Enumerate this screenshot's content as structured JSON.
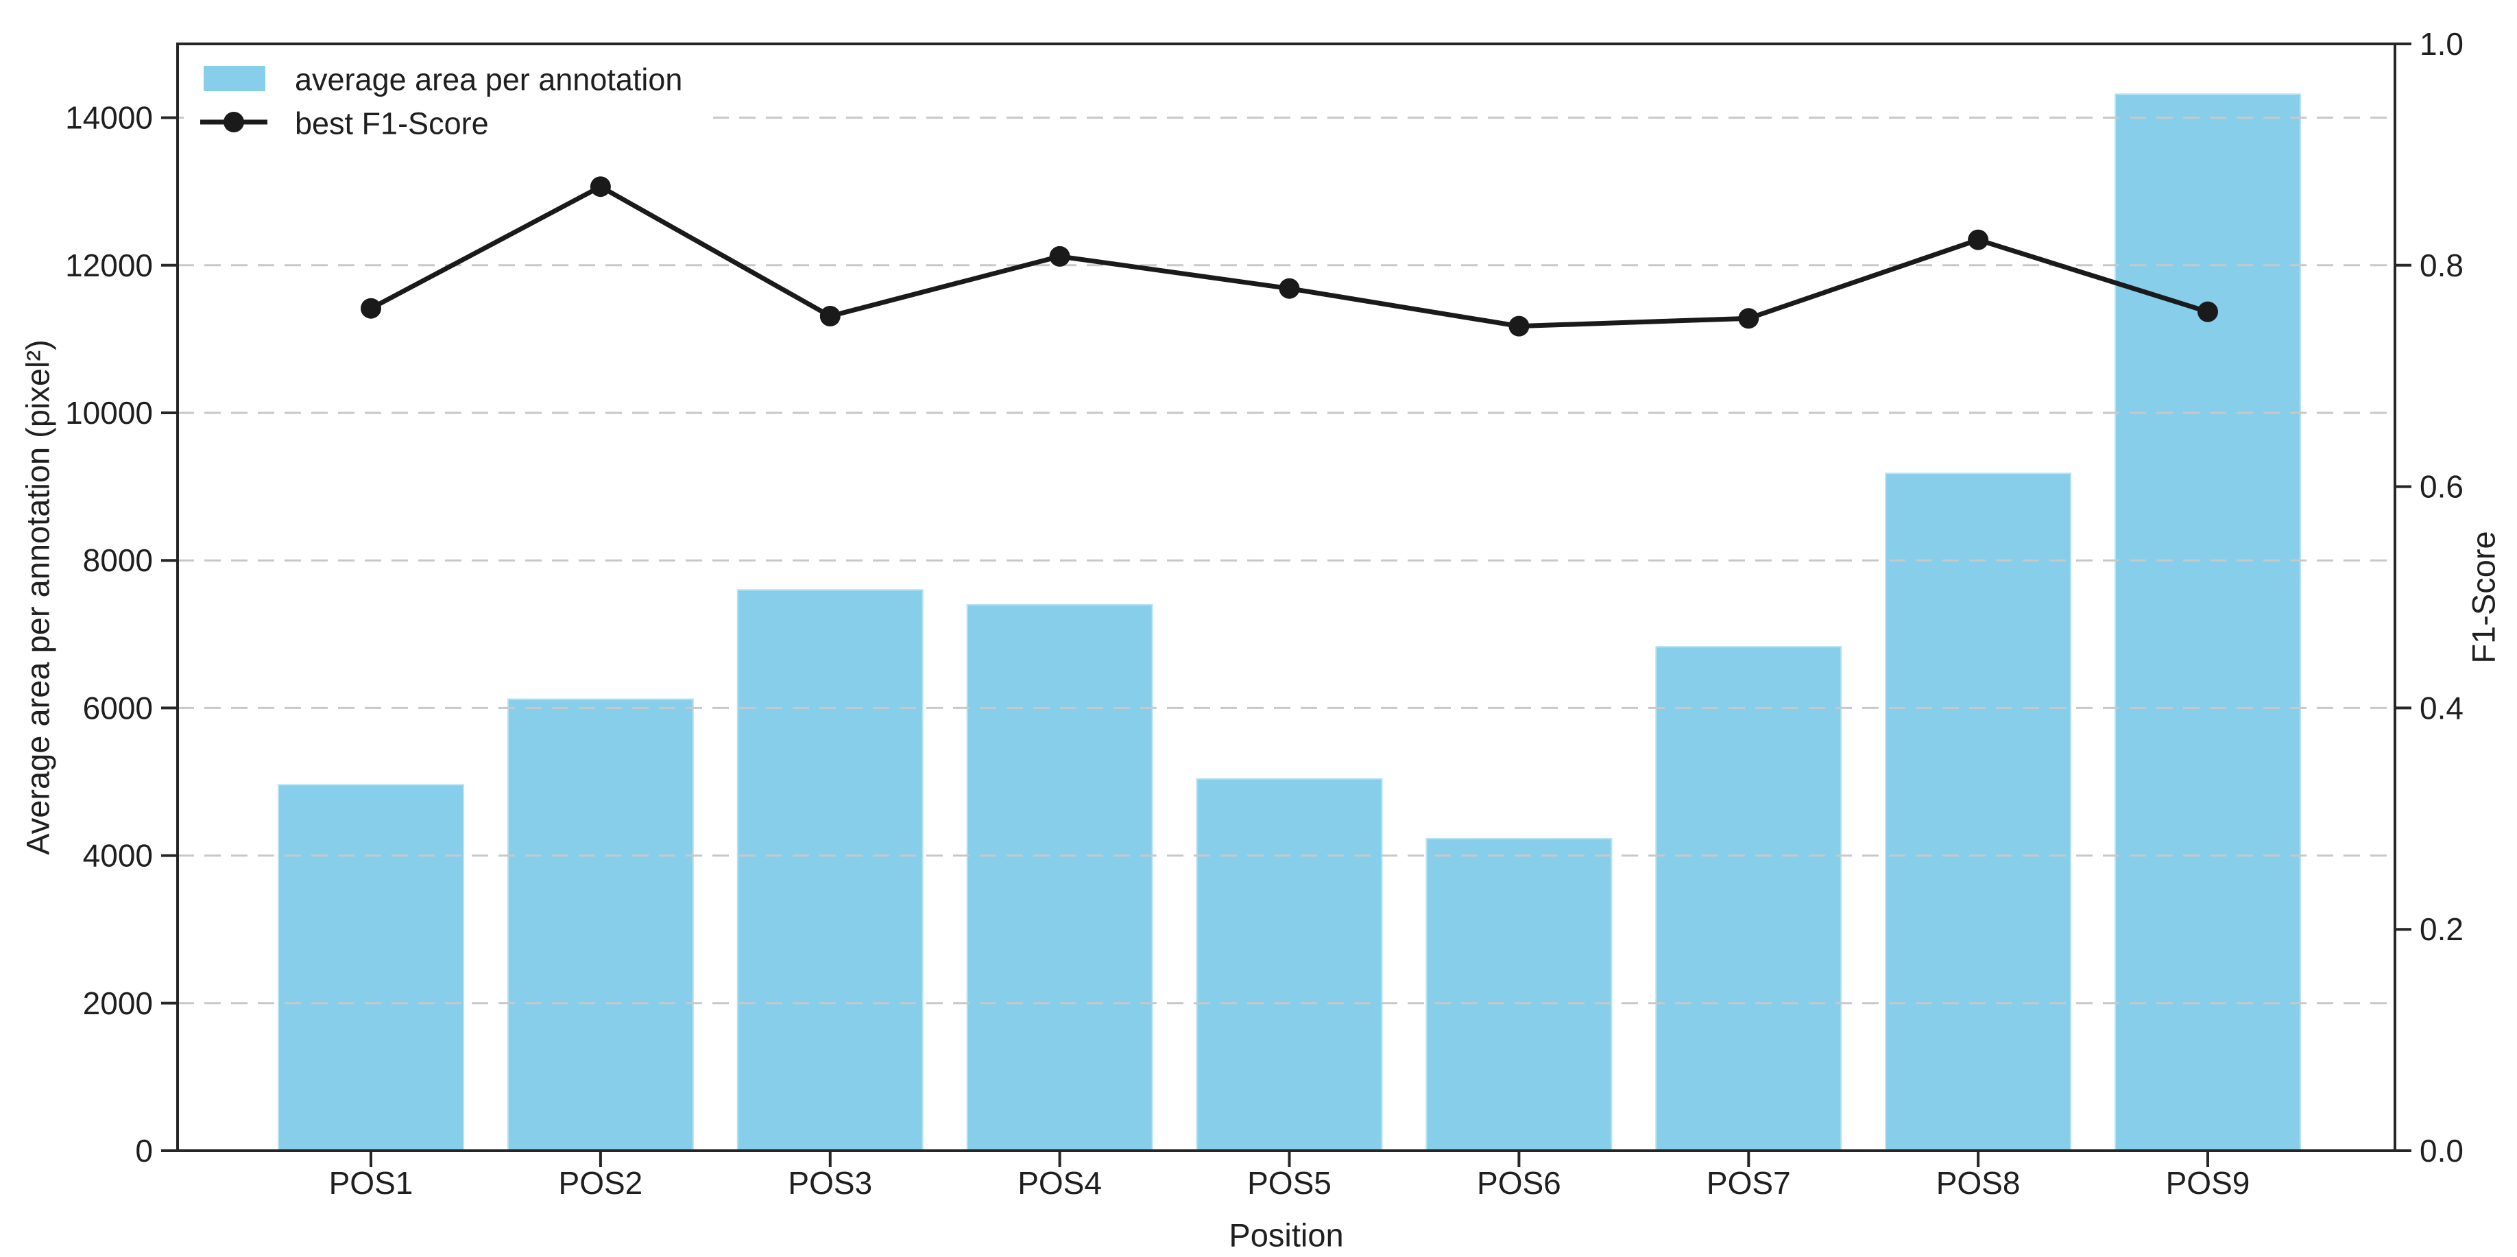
{
  "chart_data": {
    "type": "bar",
    "subtype": "dual-axis bar+line combo",
    "categories": [
      "POS1",
      "POS2",
      "POS3",
      "POS4",
      "POS5",
      "POS6",
      "POS7",
      "POS8",
      "POS9"
    ],
    "series": [
      {
        "name": "average area per annotation",
        "type": "bar",
        "axis": "left",
        "color": "#87CEEB",
        "values": [
          4960,
          6120,
          7600,
          7400,
          5040,
          4230,
          6830,
          9180,
          14320
        ]
      },
      {
        "name": "best F1-Score",
        "type": "line",
        "axis": "right",
        "color": "#1a1a1a",
        "values": [
          0.761,
          0.871,
          0.754,
          0.808,
          0.779,
          0.745,
          0.752,
          0.823,
          0.758
        ]
      }
    ],
    "title": "",
    "xlabel": "Position",
    "ylabel_left": "Average area per annotation (pixel²)",
    "ylabel_right": "F1-Score",
    "ylim_left": [
      0,
      15000
    ],
    "ylim_right": [
      0.0,
      1.0
    ],
    "yticks_left": [
      0,
      2000,
      4000,
      6000,
      8000,
      10000,
      12000,
      14000
    ],
    "ytick_labels_left": [
      "0",
      "2000",
      "4000",
      "6000",
      "8000",
      "10000",
      "12000",
      "14000"
    ],
    "yticks_right": [
      0.0,
      0.2,
      0.4,
      0.6,
      0.8,
      1.0
    ],
    "ytick_labels_right": [
      "0.0",
      "0.2",
      "0.4",
      "0.6",
      "0.8",
      "1.0"
    ],
    "grid": {
      "axis": "y",
      "source": "left-axis ticks",
      "style": "dashed",
      "color": "#c8c8c8",
      "on": true
    },
    "frame": {
      "box": true,
      "color": "#262626"
    },
    "legend": {
      "position": "upper left",
      "items": [
        "average area per annotation",
        "best F1-Score"
      ]
    }
  }
}
